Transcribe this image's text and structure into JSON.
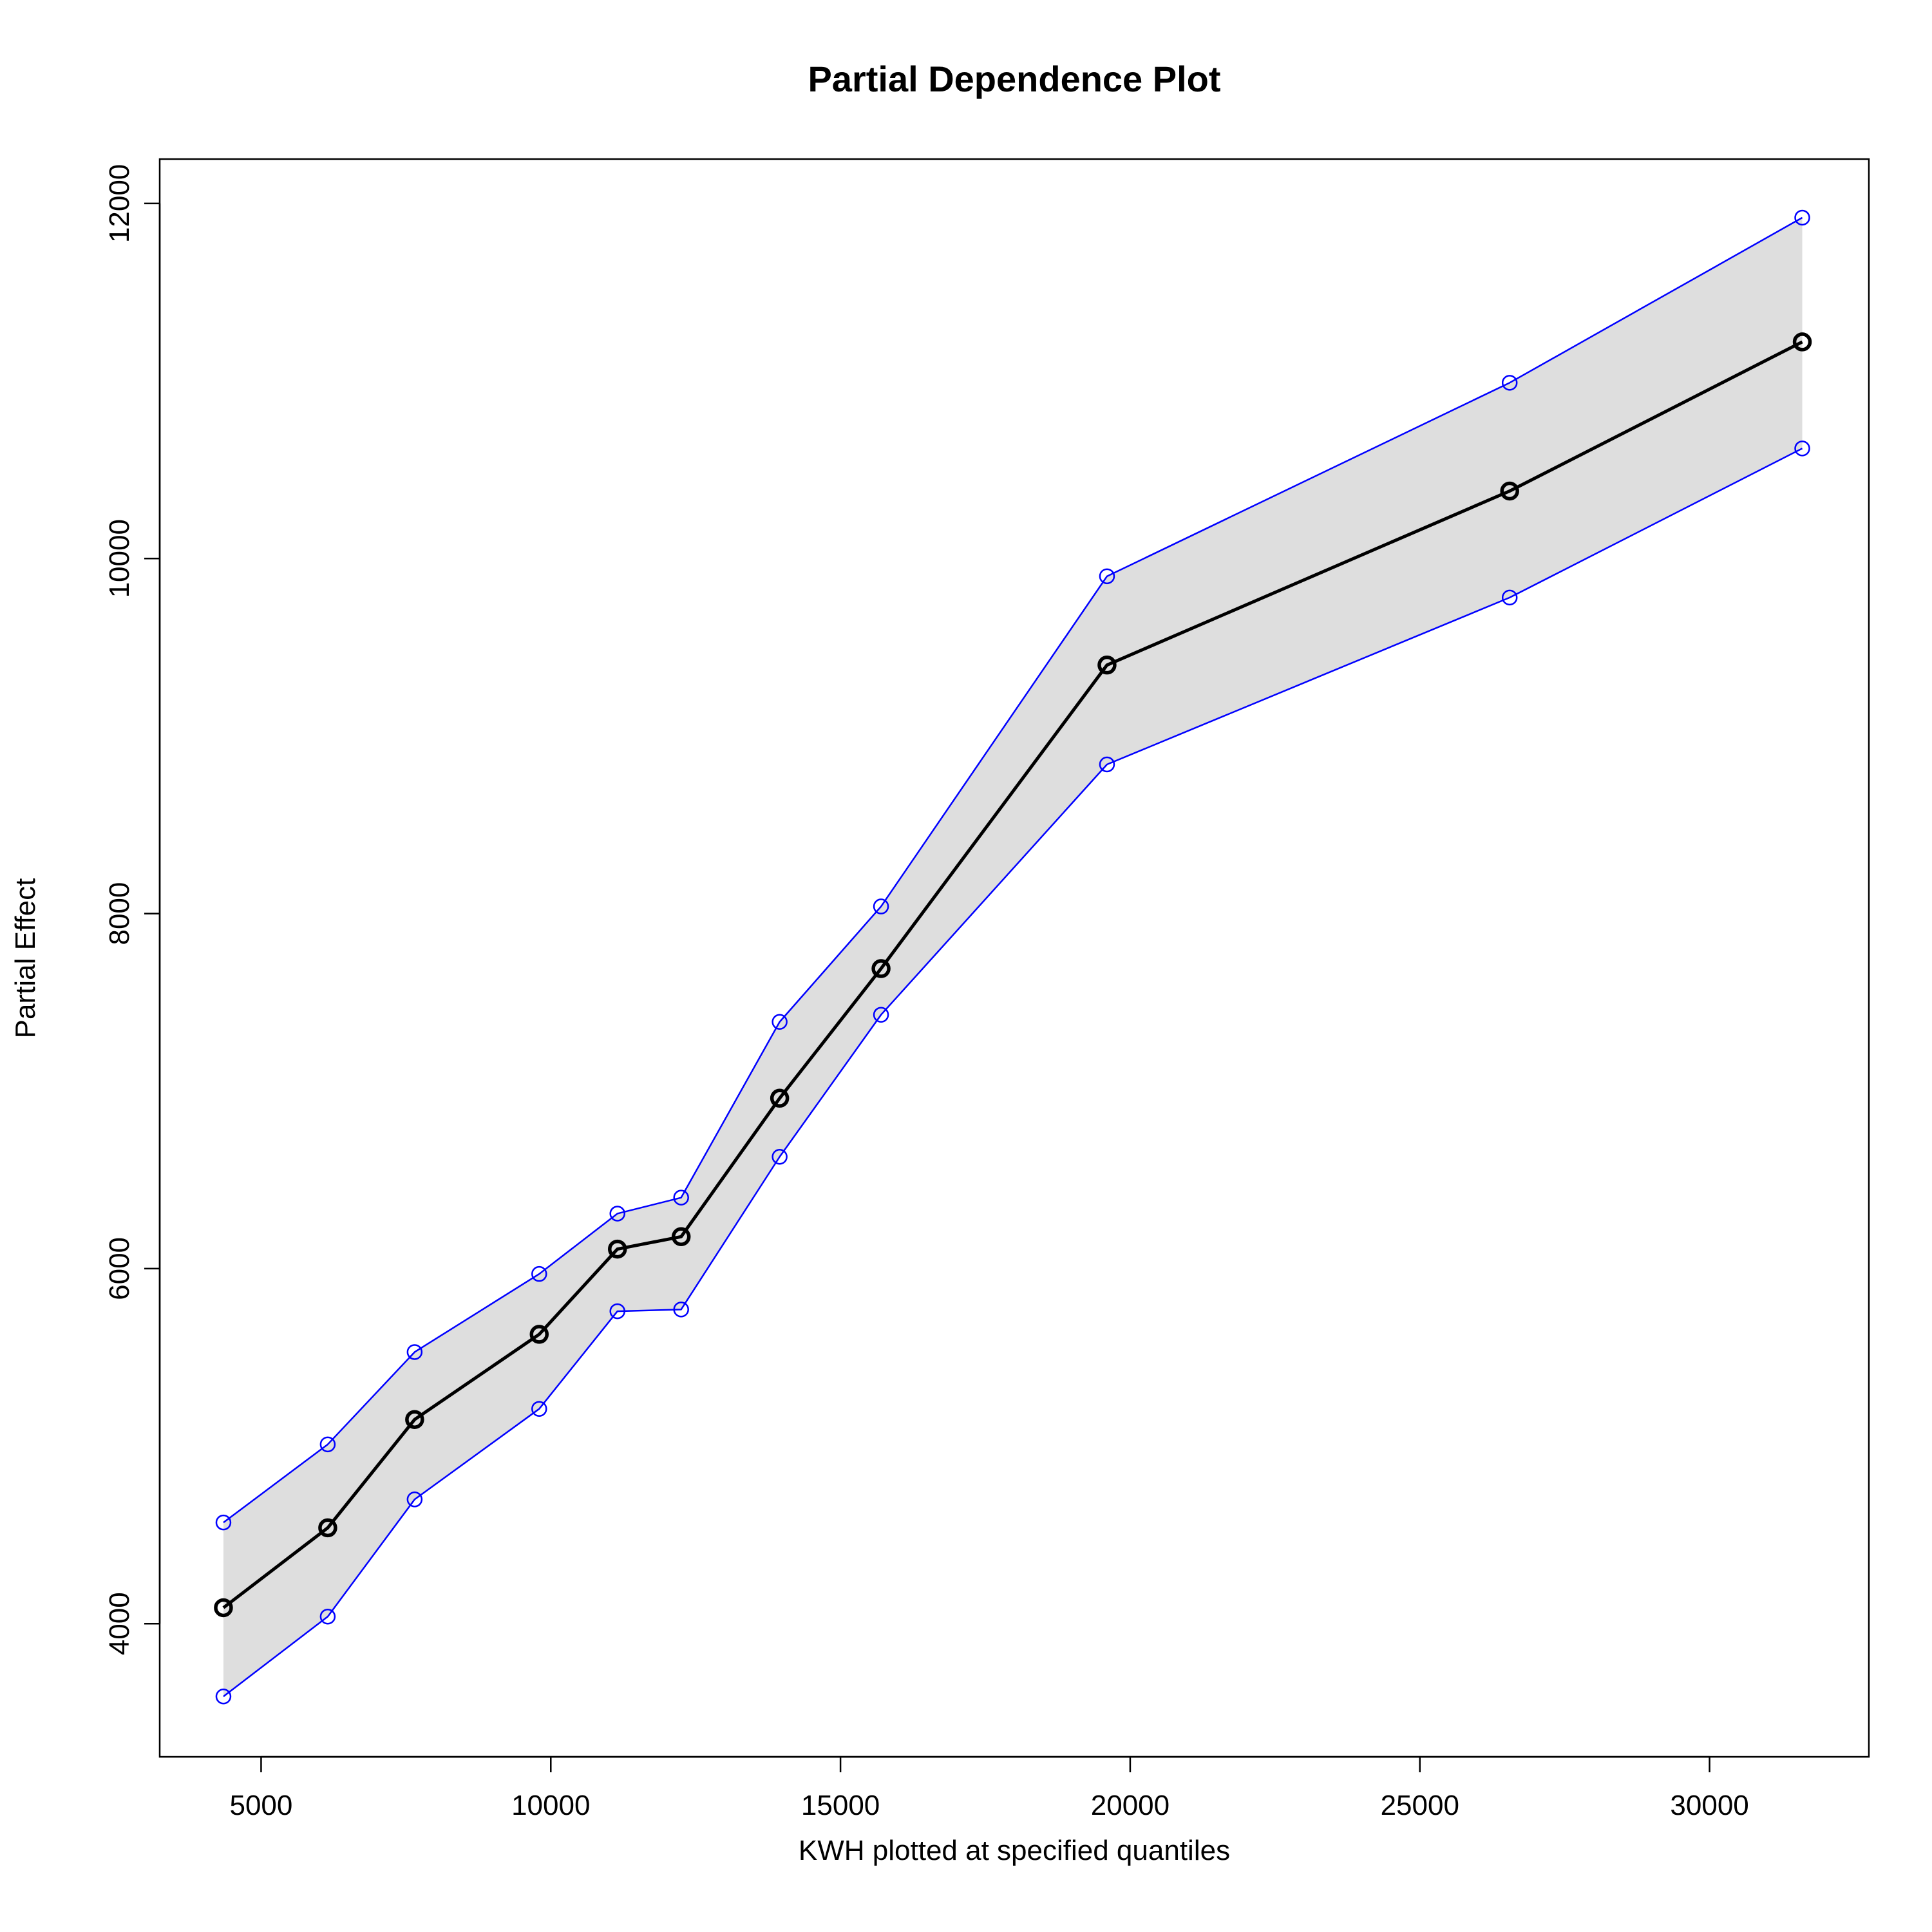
{
  "chart_data": {
    "type": "line",
    "title": "Partial Dependence Plot",
    "xlabel": "KWH plotted at specified quantiles",
    "ylabel": "Partial Effect",
    "xlim": [
      3250,
      32750
    ],
    "ylim": [
      3250,
      12250
    ],
    "x_ticks": [
      5000,
      10000,
      15000,
      20000,
      25000,
      30000
    ],
    "x_tick_labels": [
      "5000",
      "10000",
      "15000",
      "20000",
      "25000",
      "30000"
    ],
    "y_ticks": [
      4000,
      6000,
      8000,
      10000,
      12000
    ],
    "y_tick_labels": [
      "4000",
      "6000",
      "8000",
      "10000",
      "12000"
    ],
    "grid": false,
    "x": [
      4350,
      6150,
      7650,
      9800,
      11150,
      12250,
      13950,
      15700,
      19600,
      26550,
      31600
    ],
    "series": [
      {
        "role": "estimate",
        "color": "#000000",
        "values": [
          4090,
          4540,
          5150,
          5630,
          6110,
          6180,
          6960,
          7690,
          9400,
          10380,
          11220
        ]
      },
      {
        "role": "upper",
        "color": "#0000ff",
        "values": [
          4570,
          5010,
          5530,
          5970,
          6310,
          6400,
          7390,
          8040,
          9900,
          10990,
          11920
        ]
      },
      {
        "role": "lower",
        "color": "#0000ff",
        "values": [
          3590,
          4040,
          4700,
          5210,
          5760,
          5770,
          6630,
          7430,
          8840,
          9780,
          10620
        ]
      }
    ],
    "band_fill": "#dedede"
  }
}
